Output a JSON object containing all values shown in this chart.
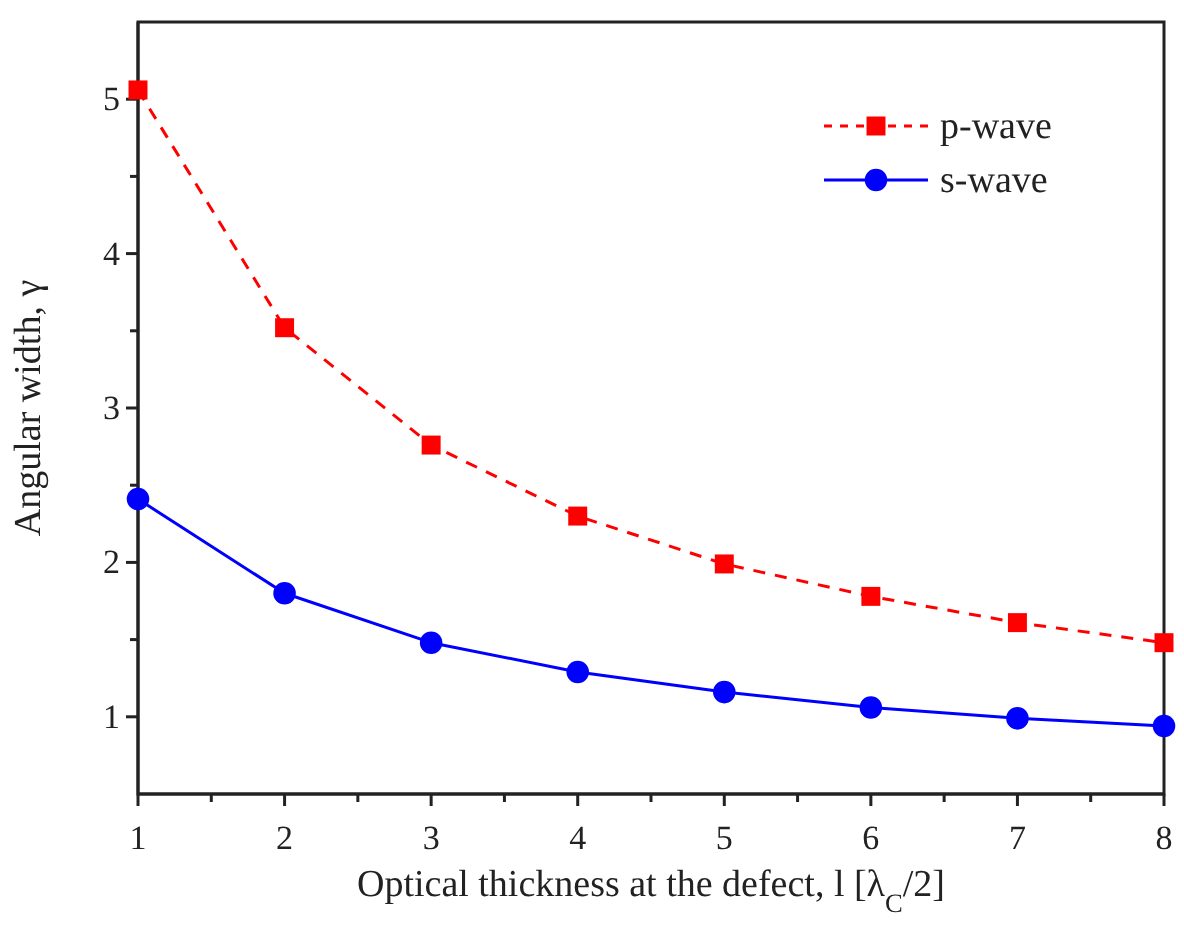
{
  "chart_data": {
    "type": "line",
    "xlabel": "Optical thickness at the defect, l [λ$_{C}$/2]",
    "ylabel": "Angular width, γ",
    "x": [
      1,
      2,
      3,
      4,
      5,
      6,
      7,
      8
    ],
    "series": [
      {
        "name": "p-wave",
        "color": "#ff0000",
        "values": [
          5.06,
          3.52,
          2.76,
          2.3,
          1.99,
          1.78,
          1.61,
          1.48
        ],
        "marker": "square",
        "line_style": "dashed"
      },
      {
        "name": "s-wave",
        "color": "#0000ff",
        "values": [
          2.41,
          1.8,
          1.48,
          1.29,
          1.16,
          1.06,
          0.99,
          0.94
        ],
        "marker": "circle",
        "line_style": "solid"
      }
    ],
    "xlim": [
      1,
      8
    ],
    "xticks": [
      1,
      {
        "value": 1.5,
        "label": null
      },
      2,
      {
        "value": 2.5,
        "label": null
      },
      3,
      {
        "value": 3.5,
        "label": null
      },
      4,
      {
        "value": 4.5,
        "label": null
      },
      5,
      {
        "value": 5.5,
        "label": null
      },
      6,
      {
        "value": 6.5,
        "label": null
      },
      7,
      {
        "value": 7.5,
        "label": null
      },
      8
    ],
    "ylim": [
      0.5,
      5.5
    ],
    "yticks": [
      1,
      {
        "value": 1.5,
        "label": null
      },
      2,
      {
        "value": 2.5,
        "label": null
      },
      3,
      {
        "value": 3.5,
        "label": null
      },
      4,
      {
        "value": 4.5,
        "label": null
      },
      5
    ],
    "grid": false,
    "legend": "top right"
  }
}
